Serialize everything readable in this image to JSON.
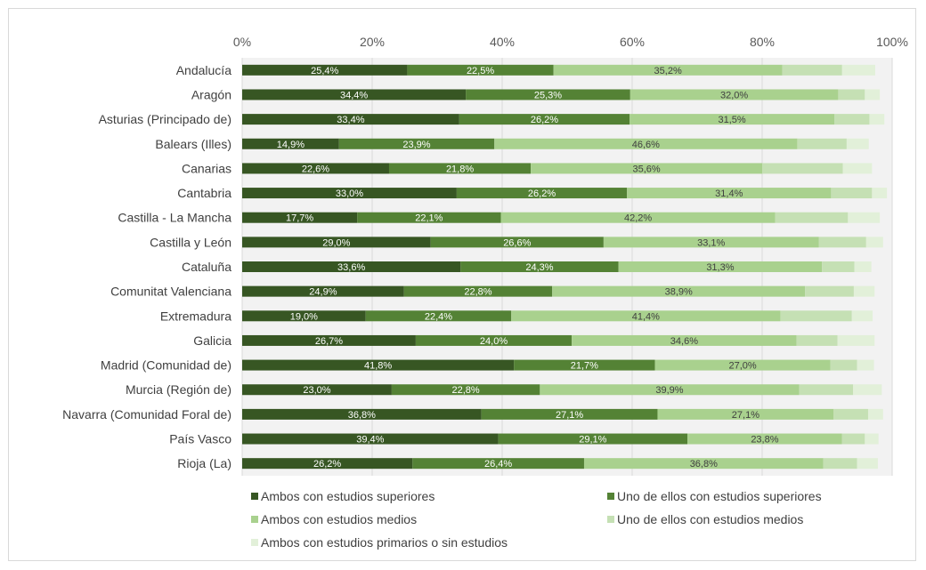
{
  "chart_data": {
    "type": "bar",
    "orientation": "horizontal",
    "stacked": true,
    "categories": [
      "Andalucía",
      "Aragón",
      "Asturias (Principado de)",
      "Balears (Illes)",
      "Canarias",
      "Cantabria",
      "Castilla - La Mancha",
      "Castilla y León",
      "Cataluña",
      "Comunitat Valenciana",
      "Extremadura",
      "Galicia",
      "Madrid (Comunidad de)",
      "Murcia (Región de)",
      "Navarra (Comunidad Foral de)",
      "País Vasco",
      "Rioja (La)"
    ],
    "series": [
      {
        "name": "Ambos con estudios superiores",
        "color": "#375623",
        "values": [
          25.4,
          34.4,
          33.4,
          14.9,
          22.6,
          33.0,
          17.7,
          29.0,
          33.6,
          24.9,
          19.0,
          26.7,
          41.8,
          23.0,
          36.8,
          39.4,
          26.2
        ],
        "labels": [
          "25,4%",
          "34,4%",
          "33,4%",
          "14,9%",
          "22,6%",
          "33,0%",
          "17,7%",
          "29,0%",
          "33,6%",
          "24,9%",
          "19,0%",
          "26,7%",
          "41,8%",
          "23,0%",
          "36,8%",
          "39,4%",
          "26,2%"
        ]
      },
      {
        "name": "Uno de ellos con estudios superiores",
        "color": "#548235",
        "values": [
          22.5,
          25.3,
          26.2,
          23.9,
          21.8,
          26.2,
          22.1,
          26.6,
          24.3,
          22.8,
          22.4,
          24.0,
          21.7,
          22.8,
          27.1,
          29.1,
          26.4
        ],
        "labels": [
          "22,5%",
          "25,3%",
          "26,2%",
          "23,9%",
          "21,8%",
          "26,2%",
          "22,1%",
          "26,6%",
          "24,3%",
          "22,8%",
          "22,4%",
          "24,0%",
          "21,7%",
          "22,8%",
          "27,1%",
          "29,1%",
          "26,4%"
        ]
      },
      {
        "name": "Ambos con estudios medios",
        "color": "#a9d18e",
        "values": [
          35.2,
          32.0,
          31.5,
          46.6,
          35.6,
          31.4,
          42.2,
          33.1,
          31.3,
          38.9,
          41.4,
          34.6,
          27.0,
          39.9,
          27.1,
          23.8,
          36.8
        ],
        "labels": [
          "35,2%",
          "32,0%",
          "31,5%",
          "46,6%",
          "35,6%",
          "31,4%",
          "42,2%",
          "33,1%",
          "31,3%",
          "38,9%",
          "41,4%",
          "34,6%",
          "27,0%",
          "39,9%",
          "27,1%",
          "23,8%",
          "36,8%"
        ]
      },
      {
        "name": "Uno de ellos con estudios medios",
        "color": "#c5e0b4",
        "values": [
          9.2,
          4.1,
          5.4,
          7.6,
          12.4,
          6.3,
          11.2,
          7.3,
          5.0,
          7.5,
          11.0,
          6.3,
          4.1,
          8.3,
          5.3,
          3.5,
          5.2
        ],
        "labels": []
      },
      {
        "name": "Ambos con estudios primarios o sin estudios",
        "color": "#e2f0d9",
        "values": [
          5.1,
          2.3,
          2.3,
          3.4,
          4.5,
          2.3,
          4.9,
          2.6,
          2.6,
          3.2,
          3.2,
          5.7,
          2.6,
          4.4,
          2.3,
          2.1,
          3.2
        ],
        "labels": []
      }
    ],
    "xlim": [
      0,
      100
    ],
    "xticks": [
      "0%",
      "20%",
      "40%",
      "60%",
      "80%",
      "100%"
    ],
    "grid": true,
    "legend_position": "bottom",
    "title": "",
    "xlabel": "",
    "ylabel": ""
  }
}
